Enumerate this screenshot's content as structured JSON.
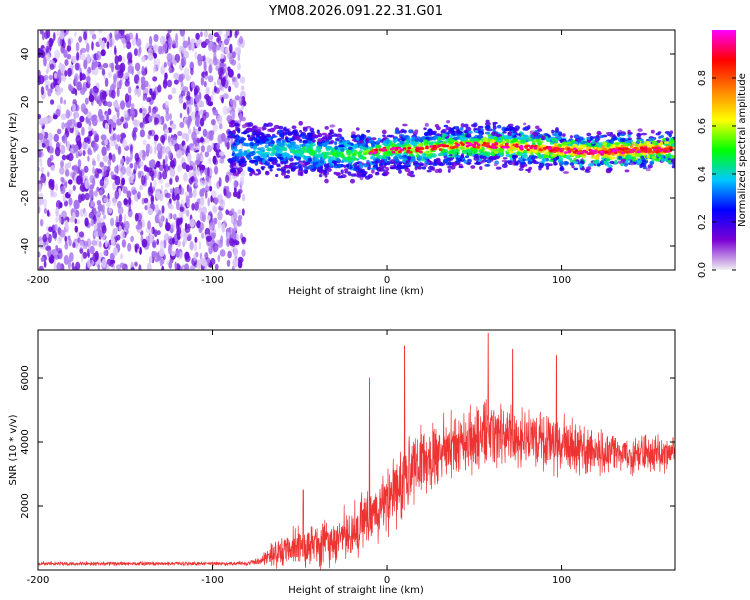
{
  "title": "YM08.2026.091.22.31.G01",
  "colors": {
    "snr_line": "#ee3333",
    "spectrogram_scatter": "#8a3cf0",
    "frame": "#000000"
  },
  "chart_data": [
    {
      "type": "heatmap",
      "name": "spectrogram",
      "xlabel": "Height of straight line (km)",
      "ylabel": "Frequency (Hz)",
      "xlim": [
        -200,
        165
      ],
      "ylim": [
        -50,
        50
      ],
      "xticks": [
        "-200",
        "-100",
        "0",
        "100"
      ],
      "xtick_values": [
        -200,
        -100,
        0,
        100
      ],
      "yticks": [
        "-40",
        "-20",
        "0",
        "20",
        "40"
      ],
      "ytick_values": [
        -40,
        -20,
        0,
        20,
        40
      ],
      "noise_region_x": [
        -200,
        -82
      ],
      "band_ridge": [
        {
          "x": -90,
          "freq": 1
        },
        {
          "x": -80,
          "freq": 0
        },
        {
          "x": -60,
          "freq": 0
        },
        {
          "x": -40,
          "freq": -1
        },
        {
          "x": -20,
          "freq": -2
        },
        {
          "x": 0,
          "freq": 0
        },
        {
          "x": 20,
          "freq": 0
        },
        {
          "x": 40,
          "freq": 2
        },
        {
          "x": 60,
          "freq": 2
        },
        {
          "x": 80,
          "freq": 1
        },
        {
          "x": 100,
          "freq": 0
        },
        {
          "x": 120,
          "freq": -1
        },
        {
          "x": 140,
          "freq": 0
        },
        {
          "x": 165,
          "freq": 0
        }
      ],
      "colorbar": {
        "label": "Normalized spectral amplitude",
        "range": [
          0,
          1
        ],
        "ticks": [
          "0.0",
          "0.2",
          "0.4",
          "0.6",
          "0.8"
        ],
        "tick_values": [
          0.0,
          0.2,
          0.4,
          0.6,
          0.8
        ],
        "colormap": [
          "#f0f0f0",
          "#7b00d4",
          "#0000ff",
          "#00c8ff",
          "#00ff00",
          "#ffff00",
          "#ff8000",
          "#ff0000",
          "#ff00ff"
        ]
      }
    },
    {
      "type": "line",
      "name": "snr",
      "xlabel": "Height of straight line (km)",
      "ylabel": "SNR (10 * v/v)",
      "xlim": [
        -200,
        165
      ],
      "ylim": [
        0,
        7500
      ],
      "xticks": [
        "-200",
        "-100",
        "0",
        "100"
      ],
      "xtick_values": [
        -200,
        -100,
        0,
        100
      ],
      "yticks": [
        "2000",
        "4000",
        "6000"
      ],
      "ytick_values": [
        2000,
        4000,
        6000
      ],
      "envelope": [
        {
          "x": -200,
          "mean": 200,
          "spread": 80
        },
        {
          "x": -80,
          "mean": 200,
          "spread": 80
        },
        {
          "x": -72,
          "mean": 300,
          "spread": 200
        },
        {
          "x": -60,
          "mean": 650,
          "spread": 700
        },
        {
          "x": -40,
          "mean": 800,
          "spread": 900
        },
        {
          "x": -20,
          "mean": 1100,
          "spread": 1100
        },
        {
          "x": -5,
          "mean": 1900,
          "spread": 1300
        },
        {
          "x": 5,
          "mean": 2600,
          "spread": 1500
        },
        {
          "x": 20,
          "mean": 3300,
          "spread": 1300
        },
        {
          "x": 40,
          "mean": 4000,
          "spread": 1200
        },
        {
          "x": 60,
          "mean": 4300,
          "spread": 1300
        },
        {
          "x": 80,
          "mean": 4100,
          "spread": 1200
        },
        {
          "x": 100,
          "mean": 3900,
          "spread": 1100
        },
        {
          "x": 120,
          "mean": 3700,
          "spread": 900
        },
        {
          "x": 140,
          "mean": 3600,
          "spread": 700
        },
        {
          "x": 165,
          "mean": 3700,
          "spread": 700
        }
      ],
      "peaks": [
        {
          "x": -48,
          "y": 2500
        },
        {
          "x": -10,
          "y": 6000
        },
        {
          "x": 10,
          "y": 7000
        },
        {
          "x": 58,
          "y": 7400
        },
        {
          "x": 72,
          "y": 6900
        },
        {
          "x": 97,
          "y": 6700
        }
      ]
    }
  ]
}
